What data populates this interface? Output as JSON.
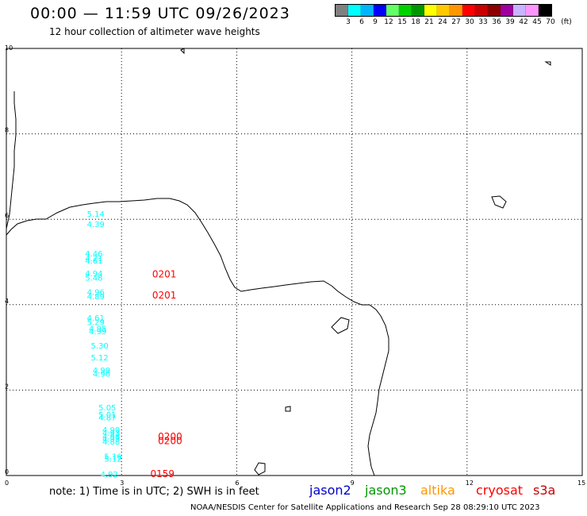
{
  "header": {
    "title": "00:00 — 11:59 UTC 09/26/2023",
    "subtitle": "12 hour collection of altimeter wave heights"
  },
  "legend": {
    "unit": "(ft)",
    "labels": [
      "3",
      "6",
      "9",
      "12",
      "15",
      "18",
      "21",
      "24",
      "27",
      "30",
      "33",
      "36",
      "39",
      "42",
      "45",
      "70"
    ],
    "colors": [
      "#808080",
      "#00ffff",
      "#00b4ff",
      "#0000ff",
      "#64ff64",
      "#00d200",
      "#009600",
      "#ffff00",
      "#ffc800",
      "#ff9600",
      "#ff0000",
      "#c80000",
      "#8c0000",
      "#a000a0",
      "#c8b4ff",
      "#ff96ff",
      "#000000"
    ]
  },
  "axes": {
    "x_ticks": [
      "0",
      "3",
      "6",
      "9",
      "12",
      "15"
    ],
    "y_ticks": [
      "0",
      "2",
      "4",
      "6",
      "8",
      "10"
    ],
    "grid": true
  },
  "observations": [
    {
      "lon": 2.1,
      "lat": 6.13,
      "value": "5.14",
      "color": "#00ffff"
    },
    {
      "lon": 2.1,
      "lat": 5.89,
      "value": "4.39",
      "color": "#00ffff"
    },
    {
      "lon": 2.05,
      "lat": 5.2,
      "value": "4.46",
      "color": "#00ffff"
    },
    {
      "lon": 2.05,
      "lat": 5.09,
      "value": "4.71",
      "color": "#00ffff"
    },
    {
      "lon": 2.05,
      "lat": 5.04,
      "value": "4.61",
      "color": "#00ffff"
    },
    {
      "lon": 2.05,
      "lat": 4.74,
      "value": "4.94",
      "color": "#00ffff"
    },
    {
      "lon": 2.05,
      "lat": 4.64,
      "value": "5.48",
      "color": "#00ffff"
    },
    {
      "lon": 2.1,
      "lat": 4.3,
      "value": "4.96",
      "color": "#00ffff"
    },
    {
      "lon": 2.1,
      "lat": 4.2,
      "value": "4.89",
      "color": "#00ffff"
    },
    {
      "lon": 2.1,
      "lat": 3.7,
      "value": "4.61",
      "color": "#00ffff"
    },
    {
      "lon": 2.1,
      "lat": 3.6,
      "value": "5.29",
      "color": "#00ffff"
    },
    {
      "lon": 2.15,
      "lat": 3.45,
      "value": "4.95",
      "color": "#00ffff"
    },
    {
      "lon": 2.15,
      "lat": 3.38,
      "value": "4.99",
      "color": "#00ffff"
    },
    {
      "lon": 2.2,
      "lat": 3.05,
      "value": "5.30",
      "color": "#00ffff"
    },
    {
      "lon": 2.2,
      "lat": 2.77,
      "value": "5.12",
      "color": "#00ffff"
    },
    {
      "lon": 2.25,
      "lat": 2.47,
      "value": "4.99",
      "color": "#00ffff"
    },
    {
      "lon": 2.25,
      "lat": 2.39,
      "value": "4.90",
      "color": "#00ffff"
    },
    {
      "lon": 2.4,
      "lat": 1.6,
      "value": "5.05",
      "color": "#00ffff"
    },
    {
      "lon": 2.4,
      "lat": 1.43,
      "value": "5.01",
      "color": "#00ffff"
    },
    {
      "lon": 2.4,
      "lat": 1.37,
      "value": "4.87",
      "color": "#00ffff"
    },
    {
      "lon": 2.5,
      "lat": 1.08,
      "value": "4.90",
      "color": "#00ffff"
    },
    {
      "lon": 2.5,
      "lat": 1.0,
      "value": "4.93",
      "color": "#00ffff"
    },
    {
      "lon": 2.5,
      "lat": 0.92,
      "value": "4.98",
      "color": "#00ffff"
    },
    {
      "lon": 2.5,
      "lat": 0.86,
      "value": "4.93",
      "color": "#00ffff"
    },
    {
      "lon": 2.5,
      "lat": 0.8,
      "value": "4.88",
      "color": "#00ffff"
    },
    {
      "lon": 2.55,
      "lat": 0.46,
      "value": "5.16",
      "color": "#00ffff"
    },
    {
      "lon": 2.55,
      "lat": 0.4,
      "value": "5.12",
      "color": "#00ffff"
    },
    {
      "lon": 2.45,
      "lat": 0.04,
      "value": "4.92",
      "color": "#00ffff"
    },
    {
      "lon": 3.8,
      "lat": 4.71,
      "value": "0201",
      "color": "#ff0000"
    },
    {
      "lon": 3.8,
      "lat": 4.22,
      "value": "0201",
      "color": "#ff0000"
    },
    {
      "lon": 3.95,
      "lat": 0.91,
      "value": "0200",
      "color": "#ff0000"
    },
    {
      "lon": 3.95,
      "lat": 0.81,
      "value": "0200",
      "color": "#ff0000"
    },
    {
      "lon": 3.75,
      "lat": 0.04,
      "value": "0159",
      "color": "#ff0000"
    }
  ],
  "note": "note:  1) Time is in UTC;  2) SWH is in feet",
  "satellites": [
    {
      "name": "jason2",
      "color": "#0000cc"
    },
    {
      "name": "jason3",
      "color": "#009600"
    },
    {
      "name": "altika",
      "color": "#ff9600"
    },
    {
      "name": "cryosat",
      "color": "#ff0000"
    },
    {
      "name": "s3a",
      "color": "#c80000"
    }
  ],
  "footer": "NOAA/NESDIS Center for Satellite Applications and Research    Sep 28 08:29:10 UTC 2023"
}
